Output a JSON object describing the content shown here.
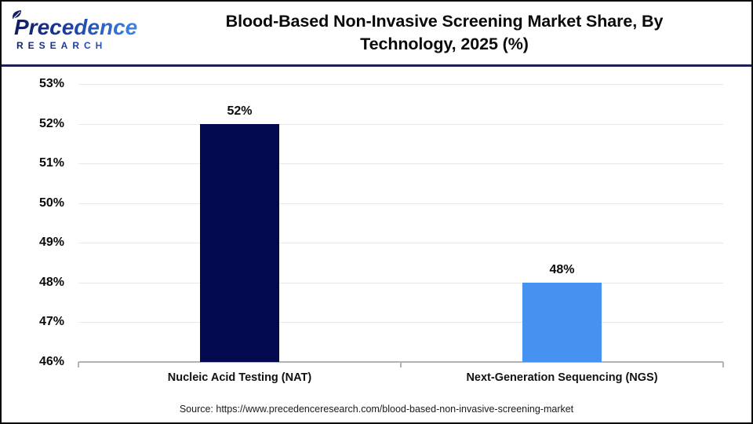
{
  "header": {
    "logo": {
      "brand": "Precedence",
      "subtitle": "RESEARCH"
    },
    "title_line1": "Blood-Based Non-Invasive Screening Market Share, By",
    "title_line2": "Technology, 2025 (%)"
  },
  "chart_data": {
    "type": "bar",
    "title": "Blood-Based Non-Invasive Screening Market Share, By Technology, 2025 (%)",
    "categories": [
      "Nucleic Acid Testing (NAT)",
      "Next-Generation Sequencing (NGS)"
    ],
    "values": [
      52,
      48
    ],
    "value_labels": [
      "52%",
      "48%"
    ],
    "bar_colors": [
      "#03094e",
      "#4791f0"
    ],
    "ylim": [
      46,
      53
    ],
    "yticks": [
      53,
      52,
      51,
      50,
      49,
      48,
      47,
      46
    ],
    "ytick_suffix": "%",
    "grid": true,
    "legend": false
  },
  "footer": {
    "source_text": "Source: https://www.precedenceresearch.com/blood-based-non-invasive-screening-market"
  },
  "colors": {
    "bar_nat": "#03094e",
    "bar_ngs": "#4791f0",
    "header_rule": "#1b2153",
    "gridline": "#e8e8e8",
    "axis_line": "#b3b3b3",
    "logo_navy": "#141f5e",
    "logo_blue": "#3b82e0"
  }
}
